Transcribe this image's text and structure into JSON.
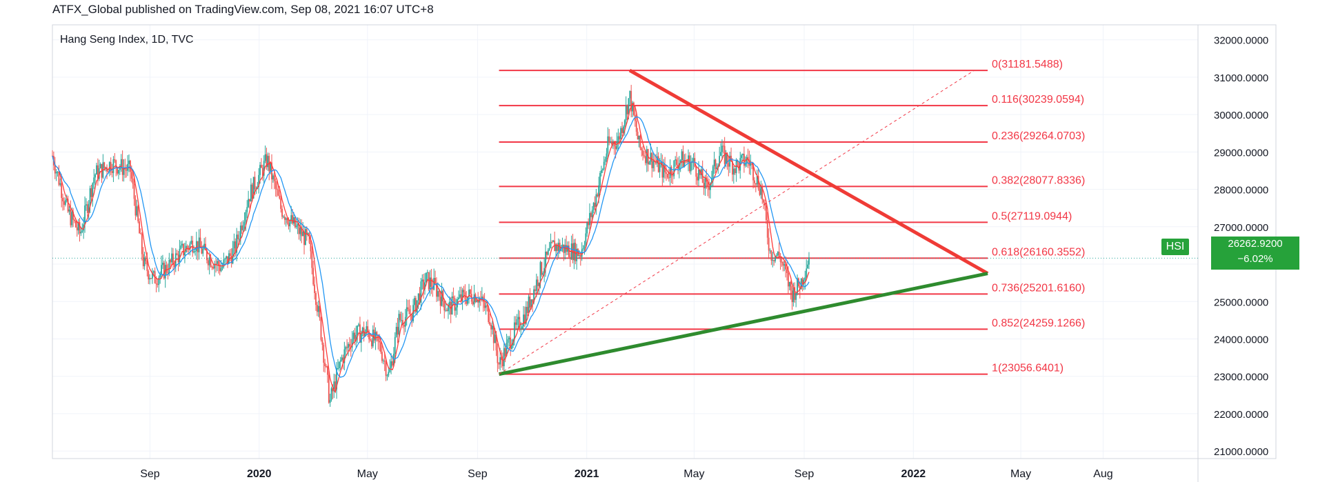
{
  "header": {
    "text": "ATFX_Global published on TradingView.com, Sep 08, 2021 16:07 UTC+8"
  },
  "chart_data": {
    "type": "candlestick",
    "title": "Hang Seng Index, 1D, TVC",
    "symbol": "HSI",
    "last_price": "26262.9200",
    "change": "−6.02%",
    "y_ticks": [
      "32000.0000",
      "31000.0000",
      "30000.0000",
      "29000.0000",
      "28000.0000",
      "27000.0000",
      "26000.0000",
      "25000.0000",
      "24000.0000",
      "23000.0000",
      "22000.0000",
      "21000.0000"
    ],
    "y_tick_values": [
      32000,
      31000,
      30000,
      29000,
      28000,
      27000,
      26000,
      25000,
      24000,
      23000,
      22000,
      21000
    ],
    "ylim": [
      20800,
      32400
    ],
    "x_ticks": [
      "Sep",
      "2020",
      "May",
      "Sep",
      "2021",
      "May",
      "Sep",
      "2022",
      "May",
      "Aug"
    ],
    "x_tick_dates": [
      "2019-09-01",
      "2020-01-01",
      "2020-05-01",
      "2020-09-01",
      "2021-01-01",
      "2021-05-01",
      "2021-09-01",
      "2022-01-01",
      "2022-05-01",
      "2022-08-01"
    ],
    "x_range": [
      "2019-05-15",
      "2022-11-15"
    ],
    "grid": true,
    "colors": {
      "up": "#26a69a",
      "down": "#ef5350",
      "ma_fast": "#ff3b3b",
      "ma_slow": "#2196f3",
      "fib": "#f23645",
      "support": "#2e8b2e",
      "resistance": "#ef3b36",
      "badge": "#26a23a"
    },
    "series": [
      {
        "name": "price",
        "points": [
          [
            "2019-05-15",
            28900
          ],
          [
            "2019-06-01",
            27400
          ],
          [
            "2019-06-15",
            26800
          ],
          [
            "2019-07-01",
            28400
          ],
          [
            "2019-07-20",
            28700
          ],
          [
            "2019-08-10",
            28500
          ],
          [
            "2019-08-25",
            26000
          ],
          [
            "2019-09-05",
            25600
          ],
          [
            "2019-09-20",
            25900
          ],
          [
            "2019-10-05",
            26300
          ],
          [
            "2019-10-20",
            26600
          ],
          [
            "2019-11-05",
            26200
          ],
          [
            "2019-11-20",
            25900
          ],
          [
            "2019-12-05",
            26400
          ],
          [
            "2019-12-20",
            27800
          ],
          [
            "2020-01-10",
            28800
          ],
          [
            "2020-01-25",
            27500
          ],
          [
            "2020-02-10",
            27000
          ],
          [
            "2020-02-25",
            26600
          ],
          [
            "2020-03-10",
            24200
          ],
          [
            "2020-03-20",
            22300
          ],
          [
            "2020-04-01",
            23400
          ],
          [
            "2020-04-15",
            24100
          ],
          [
            "2020-04-30",
            24200
          ],
          [
            "2020-05-15",
            23800
          ],
          [
            "2020-05-25",
            23000
          ],
          [
            "2020-06-05",
            24500
          ],
          [
            "2020-06-20",
            24700
          ],
          [
            "2020-07-05",
            25600
          ],
          [
            "2020-07-15",
            25400
          ],
          [
            "2020-07-30",
            24800
          ],
          [
            "2020-08-15",
            25100
          ],
          [
            "2020-08-31",
            25200
          ],
          [
            "2020-09-15",
            24600
          ],
          [
            "2020-09-25",
            23300
          ],
          [
            "2020-10-10",
            24100
          ],
          [
            "2020-10-25",
            24700
          ],
          [
            "2020-11-10",
            25800
          ],
          [
            "2020-11-25",
            26500
          ],
          [
            "2020-12-10",
            26400
          ],
          [
            "2020-12-25",
            26300
          ],
          [
            "2021-01-10",
            27700
          ],
          [
            "2021-01-25",
            29200
          ],
          [
            "2021-02-05",
            29300
          ],
          [
            "2021-02-18",
            30500
          ],
          [
            "2021-03-01",
            29100
          ],
          [
            "2021-03-15",
            28800
          ],
          [
            "2021-03-31",
            28400
          ],
          [
            "2021-04-15",
            28800
          ],
          [
            "2021-04-30",
            28700
          ],
          [
            "2021-05-15",
            28000
          ],
          [
            "2021-05-30",
            29000
          ],
          [
            "2021-06-15",
            28600
          ],
          [
            "2021-06-30",
            28800
          ],
          [
            "2021-07-15",
            28000
          ],
          [
            "2021-07-25",
            26300
          ],
          [
            "2021-08-05",
            26200
          ],
          [
            "2021-08-18",
            25200
          ],
          [
            "2021-08-28",
            25500
          ],
          [
            "2021-09-07",
            26263
          ]
        ]
      }
    ],
    "fibonacci": [
      {
        "label": "0(31181.5488)",
        "value": 31181.5488
      },
      {
        "label": "0.116(30239.0594)",
        "value": 30239.0594
      },
      {
        "label": "0.236(29264.0703)",
        "value": 29264.0703
      },
      {
        "label": "0.382(28077.8336)",
        "value": 28077.8336
      },
      {
        "label": "0.5(27119.0944)",
        "value": 27119.0944
      },
      {
        "label": "0.618(26160.3552)",
        "value": 26160.3552
      },
      {
        "label": "0.736(25201.6160)",
        "value": 25201.616
      },
      {
        "label": "0.852(24259.1266)",
        "value": 24259.1266
      },
      {
        "label": "1(23056.6401)",
        "value": 23056.6401
      }
    ],
    "fib_range": [
      "2020-09-25",
      "2022-03-25"
    ],
    "trendlines": [
      {
        "name": "resistance",
        "from": [
          "2021-02-18",
          31181.5488
        ],
        "to": [
          "2022-03-25",
          25750
        ]
      },
      {
        "name": "support",
        "from": [
          "2020-09-25",
          23056.6401
        ],
        "to": [
          "2022-03-25",
          25750
        ]
      },
      {
        "name": "fib-diagonal",
        "from": [
          "2020-09-25",
          23056.6401
        ],
        "to": [
          "2022-03-10",
          31181.5488
        ]
      }
    ]
  }
}
